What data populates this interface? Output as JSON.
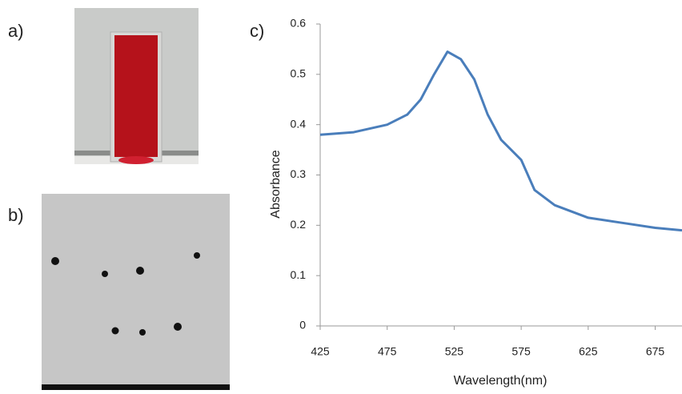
{
  "panel_labels": [
    "a)",
    "b)",
    "c)"
  ],
  "chart_data": {
    "type": "line",
    "x_label": "Wavelength(nm)",
    "y_label": "Absorbance",
    "x": [
      425,
      450,
      475,
      490,
      500,
      510,
      520,
      530,
      540,
      550,
      560,
      575,
      585,
      600,
      625,
      650,
      675,
      695
    ],
    "series": [
      {
        "color": "#4a7ebb",
        "values": [
          0.38,
          0.385,
          0.4,
          0.42,
          0.45,
          0.5,
          0.545,
          0.53,
          0.49,
          0.42,
          0.37,
          0.33,
          0.27,
          0.24,
          0.215,
          0.205,
          0.195,
          0.19
        ]
      }
    ],
    "xlim": [
      425,
      695
    ],
    "xticks": [
      425,
      475,
      525,
      575,
      625,
      675
    ],
    "ylim": [
      0,
      0.6
    ],
    "yticks": [
      0,
      0.1,
      0.2,
      0.3,
      0.4,
      0.5,
      0.6
    ]
  }
}
